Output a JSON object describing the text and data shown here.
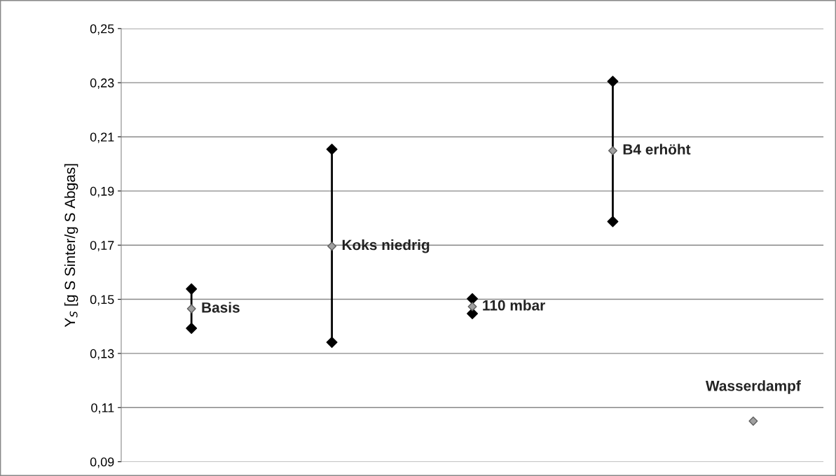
{
  "chart_data": {
    "type": "scatter",
    "ylabel": "Y$_{S}$ [g S Sinter/g S Abgas]",
    "categories": [
      "Basis",
      "Koks niedrig",
      "110 mbar",
      "B4 erhöht",
      "Wasserdampf"
    ],
    "series": [
      {
        "color": "#a0a0a0",
        "values": [
          0.1465,
          0.1696,
          0.1473,
          0.2049,
          0.105
        ]
      },
      {
        "color": "#000000",
        "values": [
          0.1538,
          0.2054,
          0.1502,
          0.2305,
          null
        ]
      },
      {
        "color": "#000000",
        "values": [
          0.1393,
          0.1341,
          0.1447,
          0.1787,
          null
        ]
      }
    ],
    "ylim": [
      0.09,
      0.25
    ],
    "yticks": [
      {
        "value": 0.09,
        "label": "0,09"
      },
      {
        "value": 0.11,
        "label": "0,11"
      },
      {
        "value": 0.13,
        "label": "0,13"
      },
      {
        "value": 0.15,
        "label": "0,15"
      },
      {
        "value": 0.17,
        "label": "0,17"
      },
      {
        "value": 0.19,
        "label": "0,19"
      },
      {
        "value": 0.21,
        "label": "0,21"
      },
      {
        "value": 0.23,
        "label": "0,23"
      },
      {
        "value": 0.25,
        "label": "0,25"
      }
    ],
    "grid": "y",
    "marker": "diamond",
    "tick_labels": "y"
  }
}
